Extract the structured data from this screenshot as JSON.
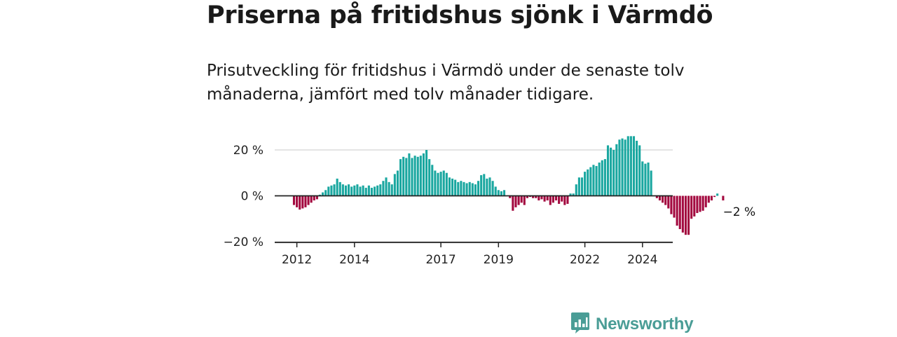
{
  "header": {
    "title": "Priserna på fritidshus sjönk i Värmdö",
    "subtitle": "Prisutveckling för fritidshus i Värmdö under de senaste tolv månaderna, jämfört med tolv månader tidigare."
  },
  "brand": {
    "name": "Newsworthy",
    "color": "#4a9d96",
    "icon": "chart-bubble-icon"
  },
  "colors": {
    "positive": "#1aa7a0",
    "negative": "#a3093f",
    "axis": "#222222",
    "grid": "#d4d4d4"
  },
  "chart_data": {
    "type": "bar",
    "title": "Priserna på fritidshus sjönk i Värmdö",
    "xlabel": "",
    "ylabel": "",
    "unit": "%",
    "ylim": [
      -20,
      30
    ],
    "y_ticks": [
      {
        "value": 20,
        "label": "20 %"
      },
      {
        "value": 0,
        "label": "0 %"
      },
      {
        "value": -20,
        "label": "−20 %"
      }
    ],
    "x_ticks": [
      {
        "index": 1,
        "label": "2012"
      },
      {
        "index": 21,
        "label": "2014"
      },
      {
        "index": 51,
        "label": "2017"
      },
      {
        "index": 71,
        "label": "2019"
      },
      {
        "index": 101,
        "label": "2022"
      },
      {
        "index": 121,
        "label": "2024"
      }
    ],
    "grid": true,
    "start": "2011-12",
    "end_label": "−2 %",
    "values": [
      -4,
      -5,
      -6,
      -5.5,
      -5,
      -4,
      -3,
      -2,
      -1.5,
      0.5,
      1.5,
      2.5,
      4,
      4.5,
      5,
      7.5,
      6,
      5,
      4.5,
      5,
      4,
      4.5,
      5,
      4,
      4.5,
      3.5,
      4.5,
      3.5,
      4,
      4.5,
      5,
      6.5,
      8,
      6,
      5,
      9.5,
      11,
      16,
      17,
      16.5,
      18.5,
      16.5,
      17.5,
      17,
      17.5,
      18.5,
      20,
      16,
      13.5,
      11,
      10,
      10.5,
      11,
      10,
      8,
      7.5,
      7,
      6,
      6.5,
      6,
      5.5,
      6,
      5.5,
      5,
      6.5,
      9,
      9.5,
      7.5,
      8,
      6.5,
      4,
      2.5,
      2,
      2.5,
      0,
      -1,
      -6.5,
      -5,
      -4,
      -3,
      -4,
      -1,
      -0.5,
      -1,
      -1,
      -2,
      -1.5,
      -2.5,
      -2,
      -4,
      -3,
      -2,
      -3.5,
      -2.5,
      -4,
      -3.5,
      1,
      1,
      5,
      8,
      8,
      10.5,
      11.5,
      12.5,
      13.5,
      13,
      14.5,
      15.5,
      16,
      22,
      21,
      20,
      22.5,
      24.5,
      25,
      24.5,
      26,
      26,
      26,
      24,
      22,
      15,
      14,
      14.5,
      11,
      0,
      -1,
      -2,
      -3,
      -4,
      -5.5,
      -8,
      -9.5,
      -13,
      -14.5,
      -16,
      -17,
      -17,
      -10,
      -9,
      -7.5,
      -7,
      -6.5,
      -5,
      -3,
      -2,
      -0.5,
      1,
      0,
      -2
    ]
  }
}
